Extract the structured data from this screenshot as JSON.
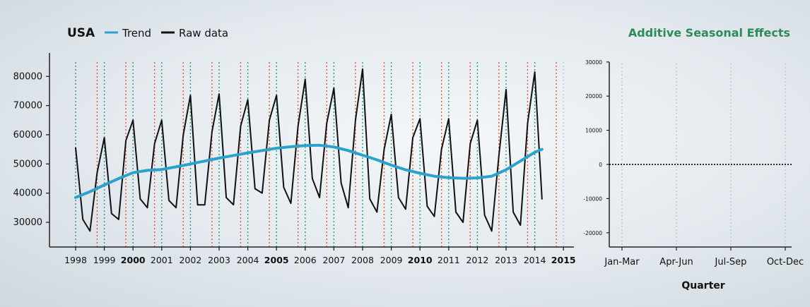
{
  "colors": {
    "trend": "#2aa2cc",
    "raw": "#111111",
    "axis": "#222222",
    "q_red": "#e0563a",
    "q_green": "#2a9a7a",
    "grid_gray": "#b9c2c9",
    "title_green": "#2e8b57"
  },
  "chart_data": [
    {
      "type": "line",
      "title": "USA",
      "legend": {
        "placement": "top-left",
        "items": [
          "Trend",
          "Raw data"
        ]
      },
      "x_ticks": [
        "1998",
        "1999",
        "2000",
        "2001",
        "2002",
        "2003",
        "2004",
        "2005",
        "2006",
        "2007",
        "2008",
        "2009",
        "2010",
        "2011",
        "2012",
        "2013",
        "2014",
        "2015"
      ],
      "bold_ticks": [
        "2000",
        "2005",
        "2010",
        "2015"
      ],
      "xlim": [
        1997.2,
        2015.3
      ],
      "ylim": [
        22000,
        86000
      ],
      "y_ticks": [
        30000,
        40000,
        50000,
        60000,
        70000,
        80000
      ],
      "y_tick_labels": [
        "30000",
        "40000",
        "50000",
        "60000",
        "70000",
        "80000"
      ],
      "grid": "dotted vertical lines at quarter boundaries (red / green / gray)",
      "series": [
        {
          "name": "Raw data",
          "x": [
            1998.0,
            1998.25,
            1998.5,
            1998.75,
            1999.0,
            1999.25,
            1999.5,
            1999.75,
            2000.0,
            2000.25,
            2000.5,
            2000.75,
            2001.0,
            2001.25,
            2001.5,
            2001.75,
            2002.0,
            2002.25,
            2002.5,
            2002.75,
            2003.0,
            2003.25,
            2003.5,
            2003.75,
            2004.0,
            2004.25,
            2004.5,
            2004.75,
            2005.0,
            2005.25,
            2005.5,
            2005.75,
            2006.0,
            2006.25,
            2006.5,
            2006.75,
            2007.0,
            2007.25,
            2007.5,
            2007.75,
            2008.0,
            2008.25,
            2008.5,
            2008.75,
            2009.0,
            2009.25,
            2009.5,
            2009.75,
            2010.0,
            2010.25,
            2010.5,
            2010.75,
            2011.0,
            2011.25,
            2011.5,
            2011.75,
            2012.0,
            2012.25,
            2012.5,
            2012.75,
            2013.0,
            2013.25,
            2013.5,
            2013.75,
            2014.0,
            2014.25
          ],
          "y": [
            55500,
            31000,
            27000,
            47000,
            59000,
            33000,
            31000,
            58000,
            65000,
            38000,
            35000,
            57000,
            65000,
            37500,
            35000,
            60000,
            73500,
            36000,
            36000,
            61000,
            74000,
            38500,
            36000,
            63000,
            72000,
            41500,
            40000,
            65000,
            73500,
            42000,
            36500,
            63000,
            79000,
            45000,
            38500,
            64000,
            76000,
            43500,
            35000,
            65000,
            82500,
            38000,
            33500,
            55000,
            67000,
            38500,
            34500,
            59000,
            65500,
            35500,
            32000,
            55000,
            65500,
            33500,
            30000,
            57000,
            65000,
            32500,
            27000,
            53000,
            75500,
            33500,
            29000,
            64000,
            81500,
            38000
          ]
        },
        {
          "name": "Trend",
          "x": [
            1998.0,
            1998.5,
            1999.0,
            1999.5,
            2000.0,
            2000.5,
            2001.0,
            2001.5,
            2002.0,
            2002.5,
            2003.0,
            2003.5,
            2004.0,
            2004.5,
            2005.0,
            2005.5,
            2006.0,
            2006.5,
            2007.0,
            2007.5,
            2008.0,
            2008.5,
            2009.0,
            2009.5,
            2010.0,
            2010.5,
            2011.0,
            2011.5,
            2012.0,
            2012.5,
            2013.0,
            2013.5,
            2014.0,
            2014.25
          ],
          "y": [
            38500,
            40500,
            42800,
            45000,
            47000,
            47800,
            48100,
            49000,
            50000,
            51000,
            52000,
            52900,
            53800,
            54600,
            55400,
            55900,
            56300,
            56400,
            55800,
            54600,
            53000,
            51400,
            49600,
            48000,
            46800,
            45800,
            45300,
            45100,
            45200,
            45800,
            48000,
            51000,
            54000,
            55000
          ]
        }
      ]
    },
    {
      "type": "line",
      "title": "Additive Seasonal Effects",
      "xlabel": "Quarter",
      "categories": [
        "Jan-Mar",
        "Apr-Jun",
        "Jul-Sep",
        "Oct-Dec"
      ],
      "ylim": [
        -25000,
        31000
      ],
      "y_ticks": [
        -20000,
        -10000,
        0,
        10000,
        20000,
        30000
      ],
      "y_tick_labels": [
        "-20000",
        "-10000",
        "0",
        "10000",
        "20000",
        "30000"
      ],
      "series": [
        {
          "values": [
            0,
            0,
            0,
            0
          ],
          "style": "dotted"
        }
      ]
    }
  ]
}
